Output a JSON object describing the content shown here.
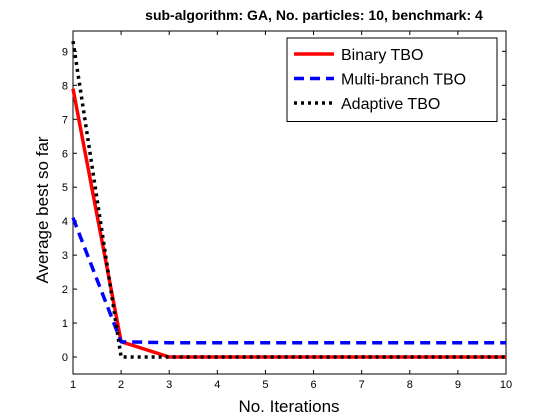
{
  "chart_data": {
    "type": "line",
    "title": "sub-algorithm: GA, No. particles: 10, benchmark: 4",
    "xlabel": "No. Iterations",
    "ylabel": "Average best so far",
    "xlim": [
      1,
      10
    ],
    "ylim": [
      -0.5,
      9.6
    ],
    "xticks": [
      1,
      2,
      3,
      4,
      5,
      6,
      7,
      8,
      9,
      10
    ],
    "yticks": [
      0,
      1,
      2,
      3,
      4,
      5,
      6,
      7,
      8,
      9
    ],
    "grid": false,
    "legend_position": "top-right",
    "x": [
      1,
      2,
      3,
      4,
      5,
      6,
      7,
      8,
      9,
      10
    ],
    "series": [
      {
        "name": "Binary TBO",
        "color": "#ff0000",
        "style": "solid",
        "values": [
          7.9,
          0.45,
          0.0,
          0.0,
          0.0,
          0.0,
          0.0,
          0.0,
          0.0,
          0.0
        ]
      },
      {
        "name": "Multi-branch TBO",
        "color": "#0000ff",
        "style": "dashed",
        "values": [
          4.1,
          0.45,
          0.42,
          0.42,
          0.42,
          0.42,
          0.42,
          0.42,
          0.42,
          0.42
        ]
      },
      {
        "name": "Adaptive TBO",
        "color": "#000000",
        "style": "dotted",
        "values": [
          9.3,
          0.0,
          0.0,
          0.0,
          0.0,
          0.0,
          0.0,
          0.0,
          0.0,
          0.0
        ]
      }
    ]
  }
}
